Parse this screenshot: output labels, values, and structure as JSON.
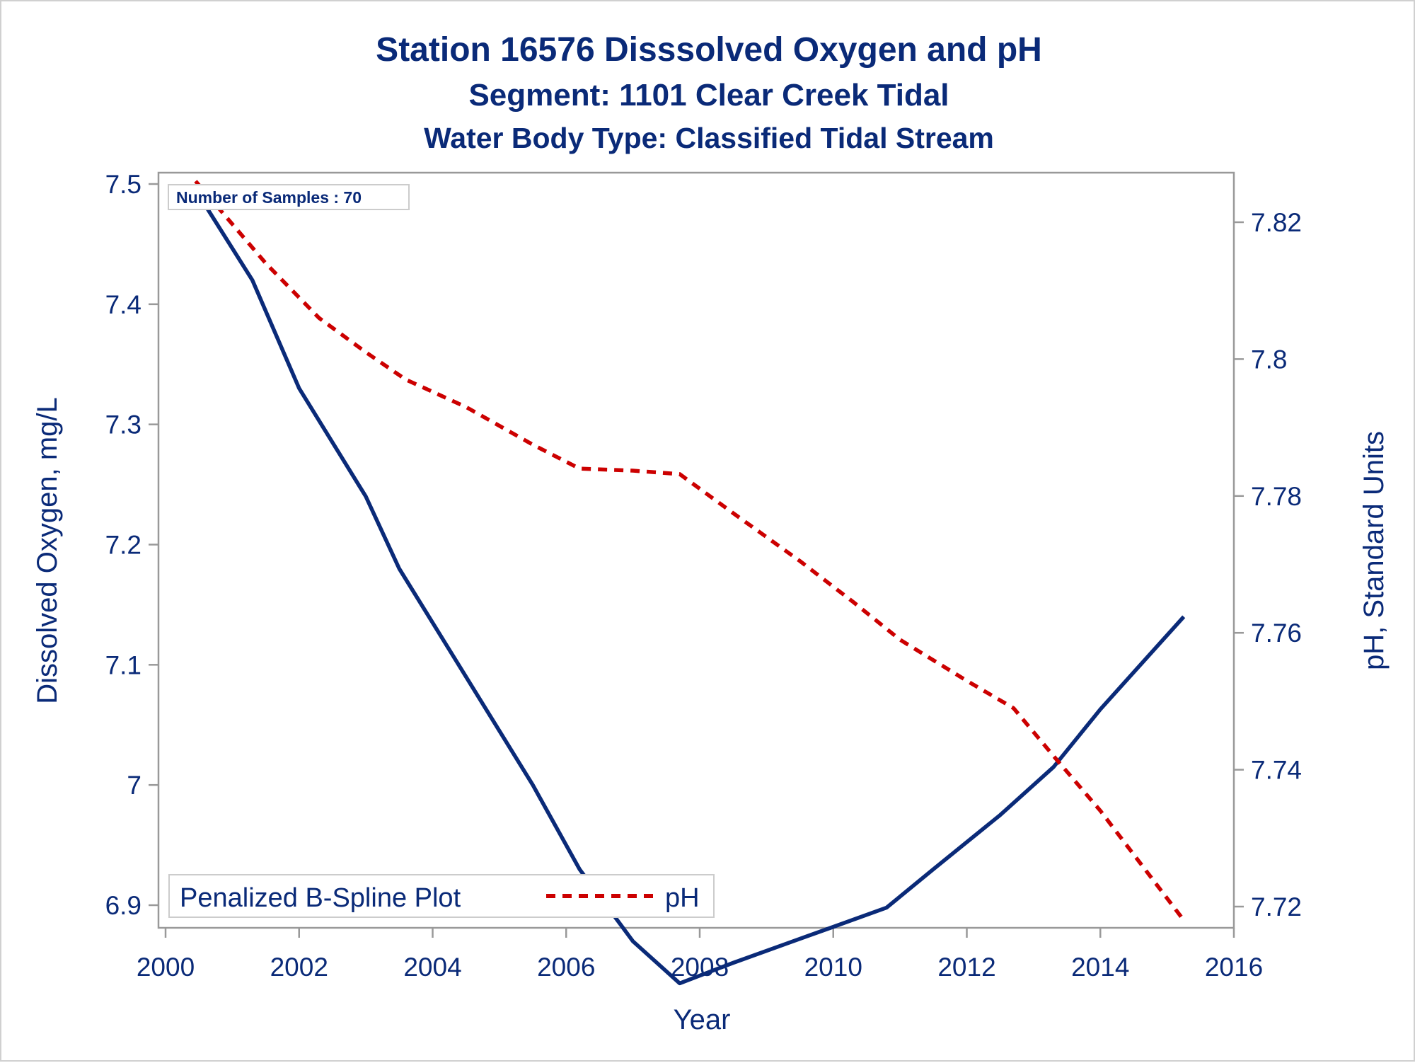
{
  "chart_data": {
    "type": "line",
    "title": "Station 16576   Disssolved Oxygen and pH",
    "subtitle": "Segment: 1101  Clear Creek Tidal",
    "subtitle2": "Water Body Type: Classified Tidal Stream",
    "xlabel": "Year",
    "ylabel": "Dissolved Oxygen, mg/L",
    "y2label": "pH, Standard Units",
    "xlim": [
      2000,
      2016
    ],
    "ylim": [
      6.89,
      7.51
    ],
    "y2lim": [
      7.7165,
      7.8275
    ],
    "x_ticks": [
      "2000",
      "2002",
      "2004",
      "2006",
      "2008",
      "2010",
      "2012",
      "2014",
      "2016"
    ],
    "y_ticks": [
      "6.9",
      "7",
      "7.1",
      "7.2",
      "7.3",
      "7.4",
      "7.5"
    ],
    "y2_ticks": [
      "7.72",
      "7.74",
      "7.76",
      "7.78",
      "7.8",
      "7.82"
    ],
    "inset": "Number of Samples : 70",
    "legend_title": "Penalized B-Spline Plot",
    "legend_placement": "bottom-left",
    "grid": false,
    "series": [
      {
        "name": "Dissolved Oxygen",
        "axis": "left",
        "style": "solid",
        "color": "#0a2a78",
        "points": [
          [
            2000.45,
            7.495
          ],
          [
            2001.3,
            7.42
          ],
          [
            2002.0,
            7.33
          ],
          [
            2003.0,
            7.24
          ],
          [
            2003.5,
            7.18
          ],
          [
            2004.5,
            7.09
          ],
          [
            2005.5,
            7.0
          ],
          [
            2006.2,
            6.93
          ],
          [
            2007.0,
            6.87
          ],
          [
            2007.7,
            6.835
          ],
          [
            2008.5,
            6.852
          ],
          [
            2009.3,
            6.868
          ],
          [
            2010.0,
            6.882
          ],
          [
            2010.8,
            6.898
          ],
          [
            2011.5,
            6.93
          ],
          [
            2012.5,
            6.975
          ],
          [
            2013.3,
            7.015
          ],
          [
            2014.0,
            7.063
          ],
          [
            2015.25,
            7.14
          ]
        ]
      },
      {
        "name": "pH",
        "axis": "right",
        "style": "dashed",
        "color": "#cc0000",
        "points": [
          [
            2000.45,
            7.826
          ],
          [
            2001.5,
            7.814
          ],
          [
            2002.3,
            7.806
          ],
          [
            2003.0,
            7.801
          ],
          [
            2003.6,
            7.797
          ],
          [
            2004.5,
            7.793
          ],
          [
            2005.5,
            7.7875
          ],
          [
            2006.2,
            7.784
          ],
          [
            2007.0,
            7.7837
          ],
          [
            2007.7,
            7.7832
          ],
          [
            2008.5,
            7.7775
          ],
          [
            2009.5,
            7.7705
          ],
          [
            2010.3,
            7.7645
          ],
          [
            2011.0,
            7.759
          ],
          [
            2012.0,
            7.753
          ],
          [
            2012.7,
            7.749
          ],
          [
            2013.3,
            7.742
          ],
          [
            2014.0,
            7.734
          ],
          [
            2015.25,
            7.718
          ]
        ]
      }
    ]
  }
}
